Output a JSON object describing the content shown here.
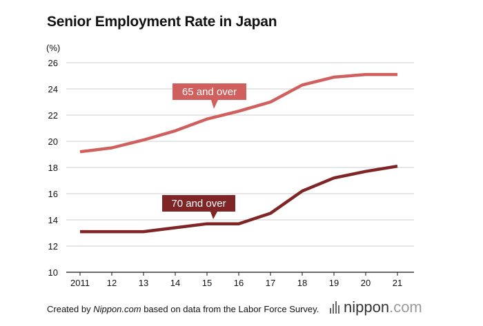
{
  "title": "Senior Employment Rate in Japan",
  "footer": {
    "prefix": "Created by ",
    "source": "Nippon.com",
    "suffix": " based on data from the Labor Force Survey."
  },
  "brand": {
    "name": "nippon",
    "tld": ".com"
  },
  "colors": {
    "series65": "#d0605e",
    "series70": "#7f2526",
    "grid": "#cccccc",
    "axis": "#111111"
  },
  "chart_data": {
    "type": "line",
    "title": "Senior Employment Rate in Japan",
    "ylabel": "(%)",
    "xlabel": "",
    "ylim": [
      10,
      26
    ],
    "yticks": [
      10,
      12,
      14,
      16,
      18,
      20,
      22,
      24,
      26
    ],
    "categories": [
      "2011",
      "12",
      "13",
      "14",
      "15",
      "16",
      "17",
      "18",
      "19",
      "20",
      "21"
    ],
    "series": [
      {
        "name": "65 and over",
        "values": [
          19.2,
          19.5,
          20.1,
          20.8,
          21.7,
          22.3,
          23.0,
          24.3,
          24.9,
          25.1,
          25.1
        ]
      },
      {
        "name": "70 and over",
        "values": [
          13.1,
          13.1,
          13.1,
          13.4,
          13.7,
          13.7,
          14.5,
          16.2,
          17.2,
          17.7,
          18.1
        ]
      }
    ],
    "grid": true
  }
}
